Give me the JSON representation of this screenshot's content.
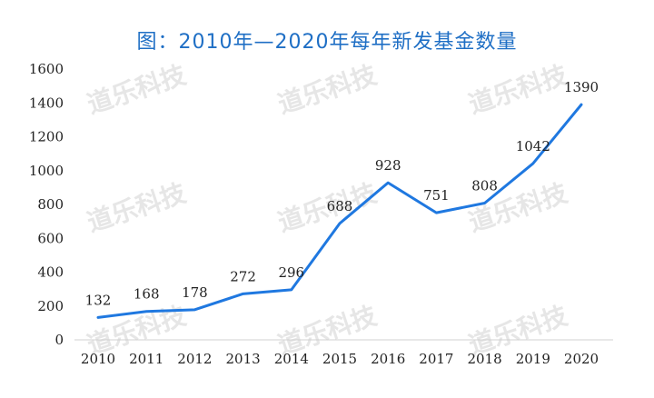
{
  "chart_data": {
    "type": "line",
    "title": "图：2010年—2020年每年新发基金数量",
    "xlabel": "",
    "ylabel": "",
    "categories": [
      "2010",
      "2011",
      "2012",
      "2013",
      "2014",
      "2015",
      "2016",
      "2017",
      "2018",
      "2019",
      "2020"
    ],
    "series": [
      {
        "values": [
          132,
          168,
          178,
          272,
          296,
          688,
          928,
          751,
          808,
          1042,
          1390
        ],
        "color": "#1f78e0"
      }
    ],
    "ylim": [
      0,
      1600
    ],
    "yticks": [
      0,
      200,
      400,
      600,
      800,
      1000,
      1200,
      1400,
      1600
    ],
    "grid": false,
    "legend": "none",
    "watermark": "道乐科技"
  }
}
